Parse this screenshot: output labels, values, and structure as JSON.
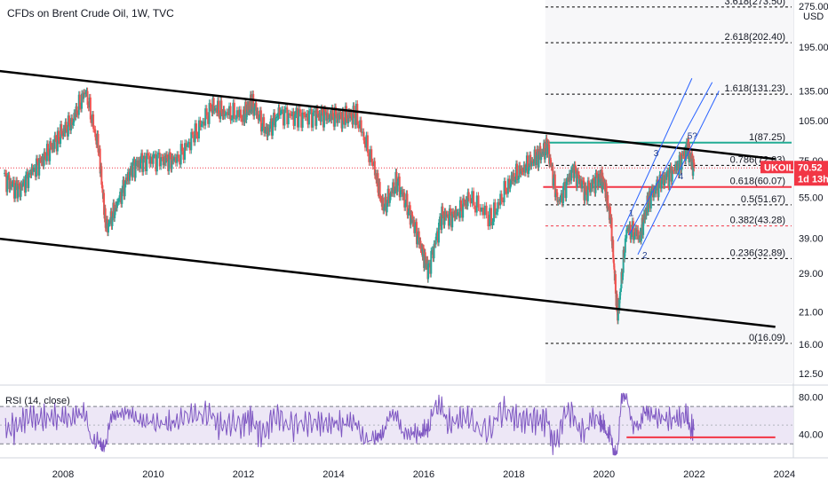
{
  "header": {
    "title": "CFDs on Brent Crude Oil, 1W, TVC"
  },
  "currency": "USD",
  "colors": {
    "up": "#26a69a",
    "down": "#ef5350",
    "trend": "#000000",
    "resistance_teal": "#22ab94",
    "support_red": "#f23645",
    "channel_blue": "#2962ff",
    "rsi_line": "#7e57c2",
    "rsi_band": "#ede7f6",
    "price_line": "#f23645"
  },
  "price_axis": {
    "ticks": [
      "275.00",
      "195.00",
      "135.00",
      "105.00",
      "75.00",
      "55.00",
      "39.00",
      "29.00",
      "21.00",
      "16.00",
      "12.50"
    ]
  },
  "time_axis": {
    "ticks": [
      "2008",
      "2010",
      "2012",
      "2014",
      "2016",
      "2018",
      "2020",
      "2022",
      "2024"
    ]
  },
  "fib_levels": [
    {
      "label": "3.618(273.50)",
      "value": 273.5,
      "color": "#000000"
    },
    {
      "label": "2.618(202.40)",
      "value": 202.4,
      "color": "#000000"
    },
    {
      "label": "1.618(131.23)",
      "value": 131.23,
      "color": "#000000"
    },
    {
      "label": "1(87.25)",
      "value": 87.25,
      "color": "#000000"
    },
    {
      "label": "0.786(72.03)",
      "value": 72.03,
      "color": "#000000"
    },
    {
      "label": "0.618(60.07)",
      "value": 60.07,
      "color": "#f23645"
    },
    {
      "label": "0.5(51.67)",
      "value": 51.67,
      "color": "#000000"
    },
    {
      "label": "0.382(43.28)",
      "value": 43.28,
      "color": "#f23645"
    },
    {
      "label": "0.236(32.89)",
      "value": 32.89,
      "color": "#000000"
    },
    {
      "label": "0(16.09)",
      "value": 16.09,
      "color": "#000000"
    }
  ],
  "wave_labels": [
    "1",
    "2",
    "3",
    "4",
    "5?"
  ],
  "price_badge": {
    "symbol": "UKOIL",
    "price": "70.52",
    "countdown": "1d 13h"
  },
  "rsi": {
    "title": "RSI (14, close)",
    "ticks": [
      "80.00",
      "40.00"
    ],
    "upper": 70,
    "lower": 30
  },
  "chart_data": {
    "type": "line",
    "title": "CFDs on Brent Crude Oil, 1W, TVC",
    "y_scale": "log",
    "ylim": [
      11.5,
      290
    ],
    "x": [
      2006.7,
      2007.0,
      2007.3,
      2007.6,
      2007.9,
      2008.2,
      2008.5,
      2008.8,
      2008.95,
      2009.2,
      2009.5,
      2009.8,
      2010.2,
      2010.5,
      2010.9,
      2011.3,
      2011.6,
      2012.0,
      2012.2,
      2012.5,
      2012.8,
      2013.2,
      2013.6,
      2013.9,
      2014.2,
      2014.5,
      2014.9,
      2015.1,
      2015.4,
      2015.7,
      2015.95,
      2016.1,
      2016.4,
      2016.7,
      2017.0,
      2017.5,
      2017.9,
      2018.2,
      2018.5,
      2018.75,
      2018.98,
      2019.3,
      2019.6,
      2019.9,
      2020.0,
      2020.15,
      2020.3,
      2020.5,
      2020.8,
      2021.0,
      2021.3,
      2021.6,
      2021.85,
      2022.0
    ],
    "values": [
      65,
      58,
      68,
      78,
      92,
      105,
      135,
      80,
      42,
      52,
      70,
      76,
      76,
      75,
      92,
      118,
      112,
      110,
      122,
      95,
      112,
      108,
      110,
      110,
      108,
      110,
      70,
      50,
      63,
      48,
      36,
      30,
      47,
      47,
      55,
      46,
      63,
      70,
      77,
      84,
      52,
      70,
      58,
      66,
      62,
      45,
      20,
      42,
      40,
      55,
      64,
      70,
      84,
      70.52
    ],
    "channel_upper": {
      "x": [
        2006.5,
        2023.8
      ],
      "y": [
        160,
        76
      ]
    },
    "channel_lower": {
      "x": [
        2006.5,
        2023.8
      ],
      "y": [
        39,
        18.5
      ]
    },
    "rsi_ylim": [
      15,
      90
    ]
  }
}
